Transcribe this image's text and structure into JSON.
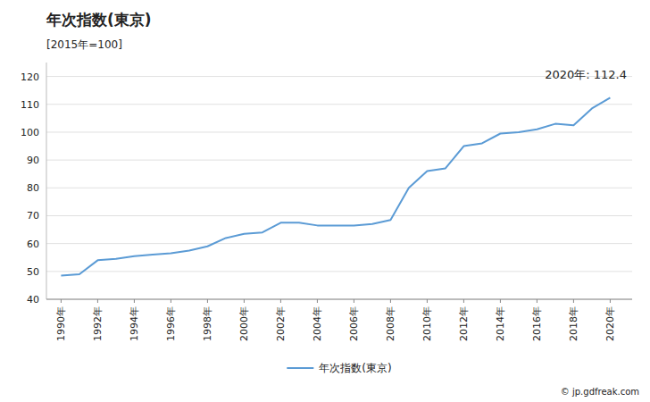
{
  "chart_data": {
    "type": "line",
    "title": "年次指数(東京)",
    "subtitle": "[2015年=100]",
    "annotations": [
      "2020年: 112.4",
      "© jp.gdfreak.com"
    ],
    "x": [
      1990,
      1991,
      1992,
      1993,
      1994,
      1995,
      1996,
      1997,
      1998,
      1999,
      2000,
      2001,
      2002,
      2003,
      2004,
      2005,
      2006,
      2007,
      2008,
      2009,
      2010,
      2011,
      2012,
      2013,
      2014,
      2015,
      2016,
      2017,
      2018,
      2019,
      2020
    ],
    "series": [
      {
        "name": "年次指数(東京)",
        "color": "#5b9bd5",
        "values": [
          48.5,
          49.0,
          54.0,
          54.5,
          55.5,
          56.0,
          56.5,
          57.5,
          59.0,
          62.0,
          63.5,
          64.0,
          67.5,
          67.5,
          66.5,
          66.5,
          66.5,
          67.0,
          68.5,
          80.0,
          86.0,
          87.0,
          95.0,
          96.0,
          99.5,
          100.0,
          101.0,
          103.0,
          102.5,
          108.5,
          112.4
        ]
      }
    ],
    "xlim": [
      1989.2,
      2021.2
    ],
    "xticks": [
      {
        "value": 1990,
        "label": "1990年"
      },
      {
        "value": 1992,
        "label": "1992年"
      },
      {
        "value": 1994,
        "label": "1994年"
      },
      {
        "value": 1996,
        "label": "1996年"
      },
      {
        "value": 1998,
        "label": "1998年"
      },
      {
        "value": 2000,
        "label": "2000年"
      },
      {
        "value": 2002,
        "label": "2002年"
      },
      {
        "value": 2004,
        "label": "2004年"
      },
      {
        "value": 2006,
        "label": "2006年"
      },
      {
        "value": 2008,
        "label": "2008年"
      },
      {
        "value": 2010,
        "label": "2010年"
      },
      {
        "value": 2012,
        "label": "2012年"
      },
      {
        "value": 2014,
        "label": "2014年"
      },
      {
        "value": 2016,
        "label": "2016年"
      },
      {
        "value": 2018,
        "label": "2018年"
      },
      {
        "value": 2020,
        "label": "2020年"
      }
    ],
    "ylim": [
      40,
      125
    ],
    "yticks": [
      40,
      50,
      60,
      70,
      80,
      90,
      100,
      110,
      120
    ],
    "grid": true,
    "legend": "bottom"
  }
}
